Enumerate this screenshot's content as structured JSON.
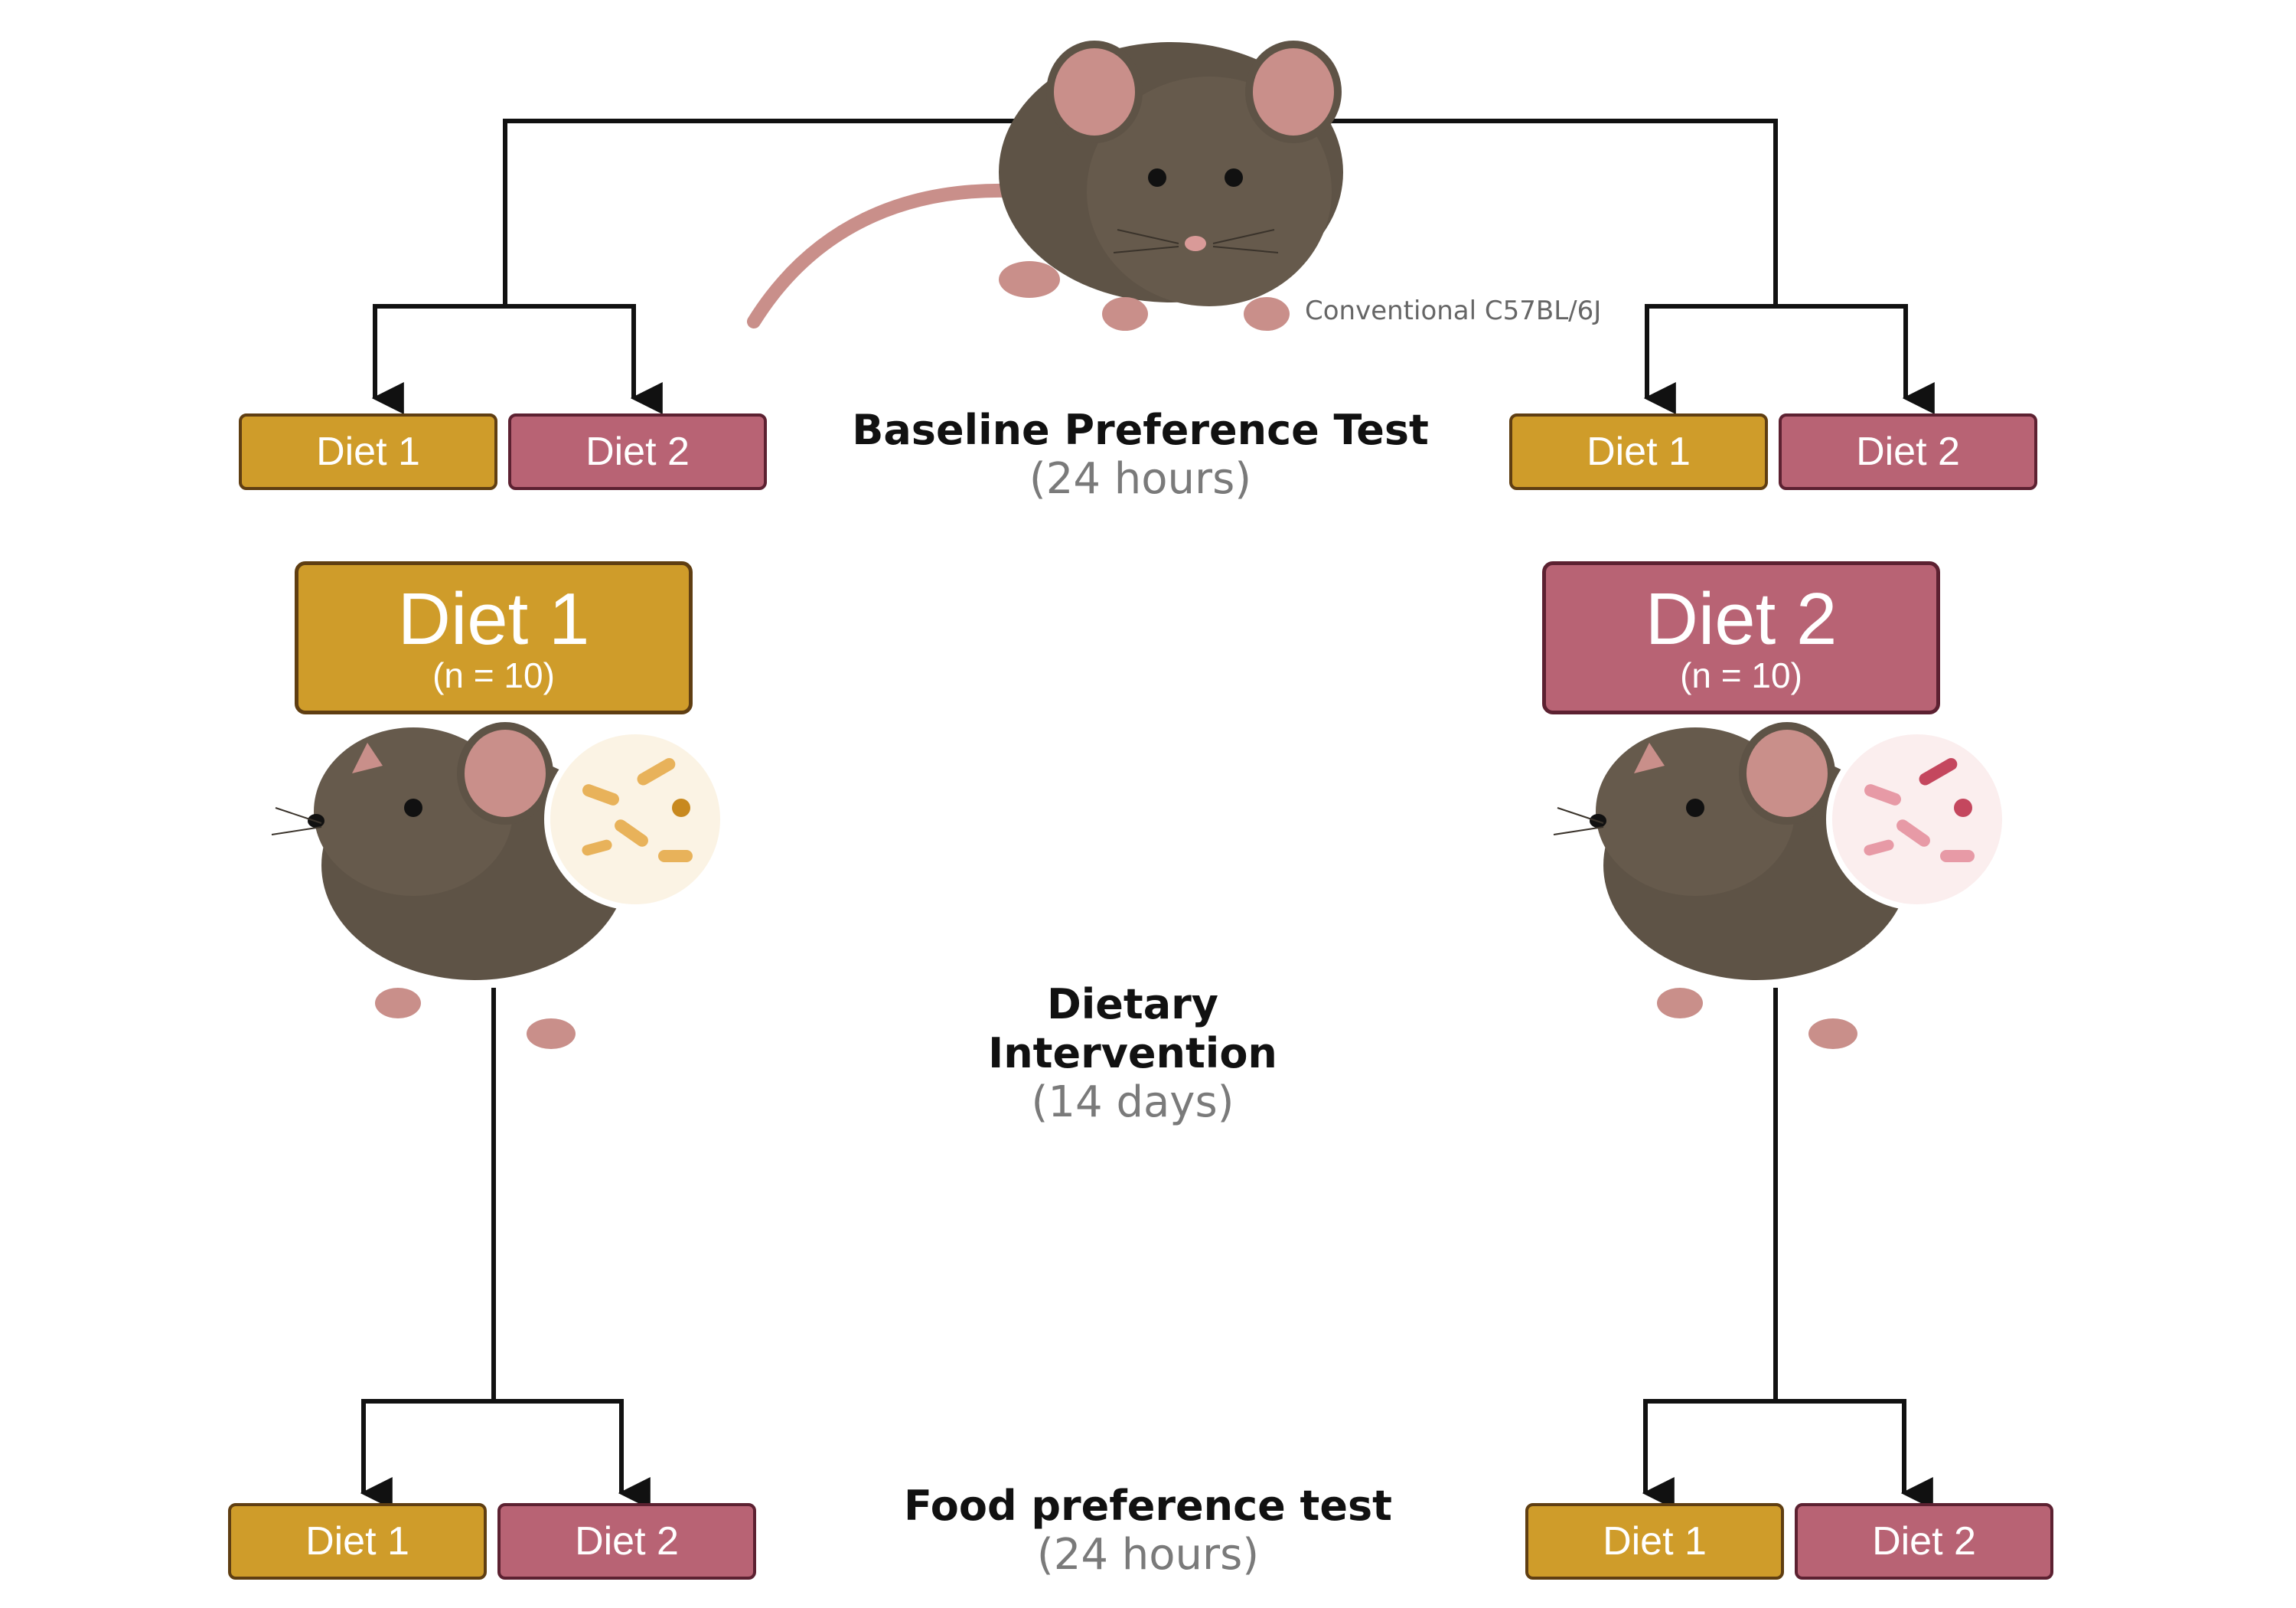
{
  "strain_label": "Conventional C57BL/6J",
  "stages": {
    "baseline": {
      "title": "Baseline Preference Test",
      "duration": "(24 hours)"
    },
    "intervention": {
      "title_line1": "Dietary",
      "title_line2": "Intervention",
      "duration": "(14 days)"
    },
    "final": {
      "title": "Food preference test",
      "duration": "(24 hours)"
    }
  },
  "diet_labels": {
    "diet1": "Diet 1",
    "diet2": "Diet 2"
  },
  "groups": [
    {
      "label": "Diet 1",
      "n": "(n = 10)"
    },
    {
      "label": "Diet 2",
      "n": "(n = 10)"
    }
  ],
  "colors": {
    "diet1": "#cf9c2a",
    "diet2": "#b86374",
    "mouse_fur": "#5e5346",
    "mouse_skin": "#c98f8a",
    "line": "#111111"
  },
  "icons": [
    "mouse-top-view",
    "mouse-side-view",
    "gut-bacteria-magnifier"
  ]
}
